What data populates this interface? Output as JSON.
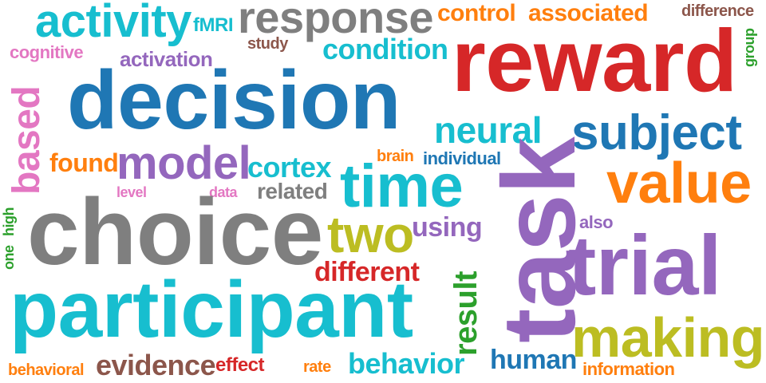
{
  "words": [
    {
      "text": "response",
      "color": "#7f7f7f"
    },
    {
      "text": "activity",
      "color": "#17becf"
    },
    {
      "text": "fMRI",
      "color": "#17becf"
    },
    {
      "text": "control",
      "color": "#ff7f0e"
    },
    {
      "text": "associated",
      "color": "#ff7f0e"
    },
    {
      "text": "difference",
      "color": "#8c564b"
    },
    {
      "text": "group",
      "color": "#2ca02c"
    },
    {
      "text": "cognitive",
      "color": "#e377c2"
    },
    {
      "text": "study",
      "color": "#8c564b"
    },
    {
      "text": "condition",
      "color": "#17becf"
    },
    {
      "text": "activation",
      "color": "#9467bd"
    },
    {
      "text": "reward",
      "color": "#d62728"
    },
    {
      "text": "based",
      "color": "#e377c2"
    },
    {
      "text": "decision",
      "color": "#1f77b4"
    },
    {
      "text": "neural",
      "color": "#17becf"
    },
    {
      "text": "subject",
      "color": "#1f77b4"
    },
    {
      "text": "found",
      "color": "#ff7f0e"
    },
    {
      "text": "model",
      "color": "#9467bd"
    },
    {
      "text": "cortex",
      "color": "#17becf"
    },
    {
      "text": "brain",
      "color": "#ff7f0e"
    },
    {
      "text": "individual",
      "color": "#1f77b4"
    },
    {
      "text": "time",
      "color": "#17becf"
    },
    {
      "text": "value",
      "color": "#ff7f0e"
    },
    {
      "text": "level",
      "color": "#e377c2"
    },
    {
      "text": "data",
      "color": "#e377c2"
    },
    {
      "text": "related",
      "color": "#7f7f7f"
    },
    {
      "text": "task",
      "color": "#9467bd"
    },
    {
      "text": "choice",
      "color": "#7f7f7f"
    },
    {
      "text": "one",
      "color": "#2ca02c"
    },
    {
      "text": "high",
      "color": "#2ca02c"
    },
    {
      "text": "two",
      "color": "#bcbd22"
    },
    {
      "text": "using",
      "color": "#9467bd"
    },
    {
      "text": "also",
      "color": "#9467bd"
    },
    {
      "text": "trial",
      "color": "#9467bd"
    },
    {
      "text": "different",
      "color": "#d62728"
    },
    {
      "text": "result",
      "color": "#2ca02c"
    },
    {
      "text": "participant",
      "color": "#17becf"
    },
    {
      "text": "making",
      "color": "#bcbd22"
    },
    {
      "text": "human",
      "color": "#1f77b4"
    },
    {
      "text": "evidence",
      "color": "#8c564b"
    },
    {
      "text": "behavior",
      "color": "#17becf"
    },
    {
      "text": "behavioral",
      "color": "#ff7f0e"
    },
    {
      "text": "effect",
      "color": "#d62728"
    },
    {
      "text": "rate",
      "color": "#ff7f0e"
    },
    {
      "text": "information",
      "color": "#ff7f0e"
    }
  ]
}
